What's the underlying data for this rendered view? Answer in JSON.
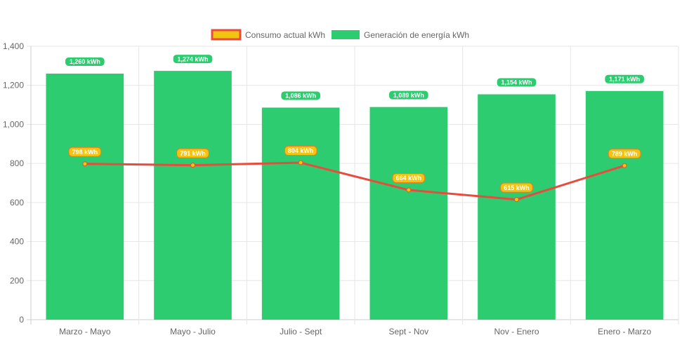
{
  "chart_data": {
    "type": "bar",
    "categories": [
      "Marzo - Mayo",
      "Mayo - Julio",
      "Julio - Sept",
      "Sept - Nov",
      "Nov - Enero",
      "Enero - Marzo"
    ],
    "series": [
      {
        "name": "Consumo actual kWh",
        "type": "line",
        "color": "#e74c3c",
        "point_color": "#f1c40f",
        "values": [
          798,
          791,
          804,
          664,
          615,
          789
        ],
        "labels": [
          "798 kWh",
          "791 kWh",
          "804 kWh",
          "664 kWh",
          "615 kWh",
          "789 kWh"
        ]
      },
      {
        "name": "Generación de energía kWh",
        "type": "bar",
        "color": "#2ecc71",
        "values": [
          1260,
          1274,
          1086,
          1089,
          1154,
          1171
        ],
        "labels": [
          "1,260 kWh",
          "1,274 kWh",
          "1,086 kWh",
          "1,089 kWh",
          "1,154 kWh",
          "1,171 kWh"
        ]
      }
    ],
    "ylim": [
      0,
      1400
    ],
    "yticks": [
      0,
      200,
      400,
      600,
      800,
      1000,
      1200,
      1400
    ],
    "ytick_labels": [
      "0",
      "200",
      "400",
      "600",
      "800",
      "1,000",
      "1,200",
      "1,400"
    ],
    "legend_position": "top",
    "grid": true
  },
  "legend": {
    "consumo_label": "Consumo actual kWh",
    "generacion_label": "Generación de energía kWh"
  }
}
